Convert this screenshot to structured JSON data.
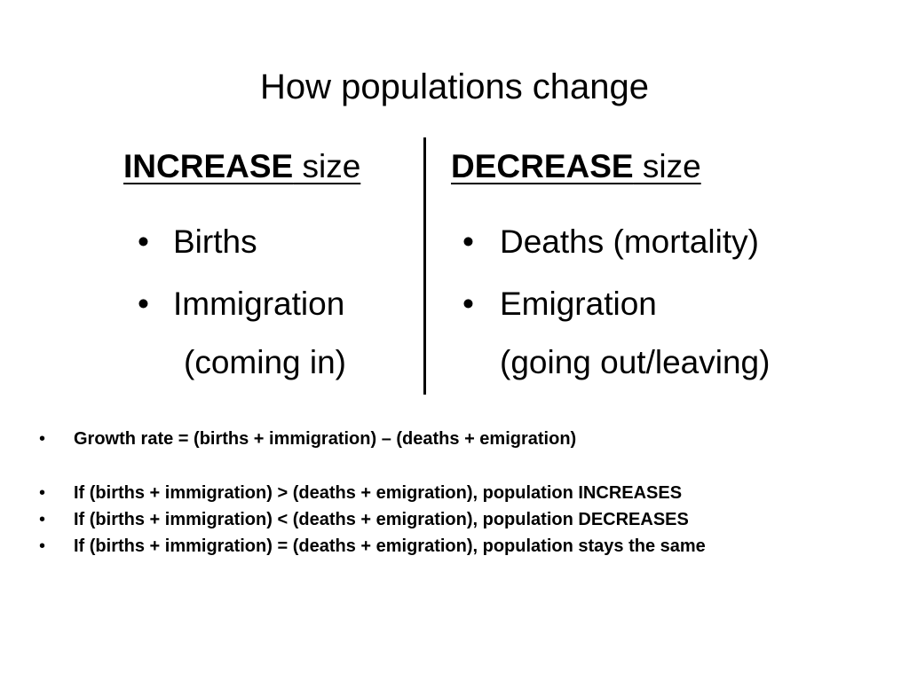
{
  "title": "How populations change",
  "columns": {
    "increase": {
      "header_strong": "INCREASE",
      "header_rest": " size",
      "items": [
        {
          "label": "Births",
          "note": ""
        },
        {
          "label": "Immigration",
          "note": "(coming in)"
        }
      ]
    },
    "decrease": {
      "header_strong": "DECREASE",
      "header_rest": " size",
      "items": [
        {
          "label": "Deaths (mortality)",
          "note": ""
        },
        {
          "label": "Emigration",
          "note": "(going out/leaving)"
        }
      ]
    }
  },
  "bullet_char": "•",
  "rules": [
    "Growth rate = (births + immigration) – (deaths + emigration)",
    "If (births + immigration) > (deaths + emigration), population INCREASES",
    "If (births + immigration) < (deaths + emigration), population DECREASES",
    "If (births + immigration) = (deaths + emigration), population stays the same"
  ]
}
